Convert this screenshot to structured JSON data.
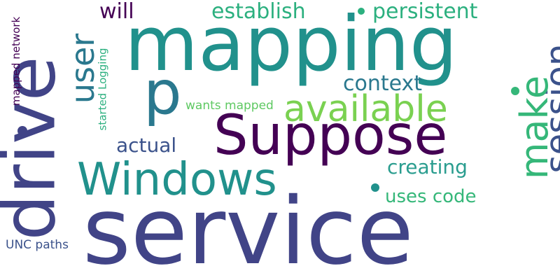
{
  "background": "#ffffff",
  "palette": [
    "#440154",
    "#414487",
    "#3b528b",
    "#2a788e",
    "#21918c",
    "#2cb07f",
    "#35b779",
    "#5ec962",
    "#7ad151"
  ],
  "words": {
    "mapping": "mapping",
    "service": "service",
    "drive": "drive",
    "suppose": "Suppose",
    "windows": "Windows",
    "available": "available",
    "p": "p",
    "session": "session",
    "make": "make",
    "user": "user",
    "establish": "establish",
    "persistent": "persistent",
    "will": "will",
    "context": "context",
    "actual": "actual",
    "creating": "creating",
    "uses_code": "uses code",
    "unc_paths": "UNC paths",
    "wants_mapped": "wants mapped",
    "mapped_network": "mapped network",
    "started_logging": "started Logging"
  }
}
